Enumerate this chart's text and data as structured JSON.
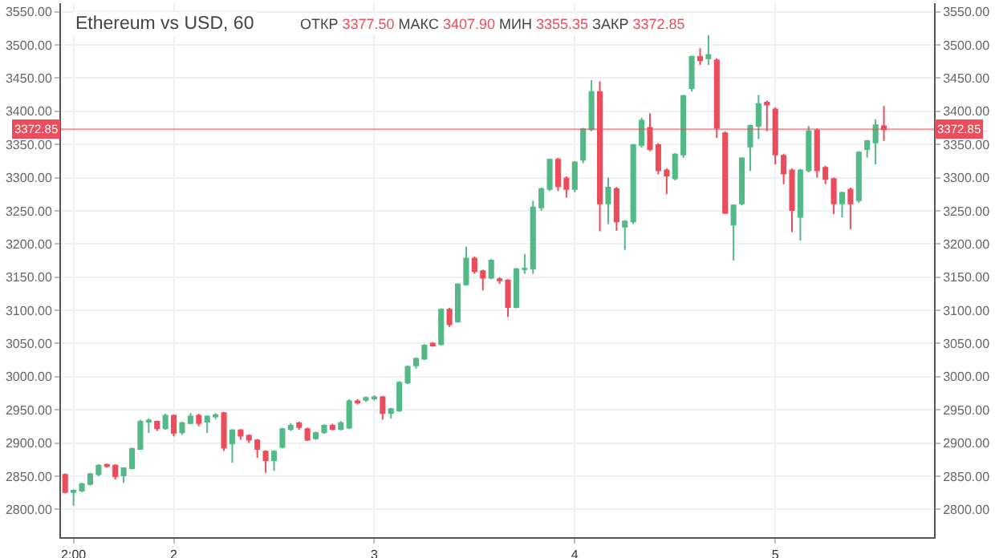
{
  "chart_data": {
    "type": "candlestick",
    "title": "Ethereum vs USD, 60",
    "subtitle": "ОТКР 3377.50 МАКС 3407.90 МИН 3355.35 ЗАКР 3372.85",
    "colors": [
      "#eb4d5c",
      "#53b987",
      "#53b987",
      "#53b987",
      "#53b987",
      "#eb4d5c",
      "#eb4d5c",
      "#53b987",
      "#53b987",
      "#53b987",
      "#53b987",
      "#eb4d5c",
      "#53b987",
      "#eb4d5c",
      "#53b987",
      "#53b987",
      "#eb4d5c",
      "#53b987",
      "#53b987",
      "#eb4d5c",
      "#53b987",
      "#eb4d5c",
      "#eb4d5c",
      "#eb4d5c",
      "#eb4d5c",
      "#53b987",
      "#53b987",
      "#53b987",
      "#eb4d5c",
      "#eb4d5c",
      "#53b987",
      "#53b987",
      "#eb4d5c",
      "#53b987",
      "#53b987",
      "#eb4d5c",
      "#53b987",
      "#53b987",
      "#eb4d5c",
      "#53b987",
      "#53b987",
      "#53b987",
      "#53b987",
      "#53b987",
      "#eb4d5c",
      "#53b987",
      "#eb4d5c",
      "#53b987",
      "#53b987",
      "#eb4d5c",
      "#eb4d5c",
      "#53b987",
      "#eb4d5c",
      "#eb4d5c",
      "#53b987",
      "#53b987",
      "#53b987",
      "#53b987",
      "#53b987",
      "#eb4d5c",
      "#eb4d5c",
      "#53b987",
      "#53b987",
      "#53b987",
      "#eb4d5c",
      "#53b987",
      "#eb4d5c",
      "#53b987",
      "#53b987",
      "#53b987",
      "#eb4d5c",
      "#eb4d5c",
      "#eb4d5c",
      "#53b987",
      "#53b987",
      "#53b987",
      "#eb4d5c",
      "#53b987",
      "#eb4d5c",
      "#eb4d5c",
      "#53b987",
      "#53b987",
      "#53b987",
      "#53b987",
      "#eb4d5c",
      "#eb4d5c",
      "#eb4d5c",
      "#eb4d5c",
      "#53b987",
      "#53b987",
      "#eb4d5c",
      "#eb4d5c",
      "#eb4d5c",
      "#53b987",
      "#eb4d5c",
      "#53b987",
      "#53b987",
      "#53b987",
      "#eb4d5c"
    ],
    "categories": [
      null,
      "2:00",
      null,
      null,
      null,
      null,
      null,
      null,
      null,
      null,
      null,
      null,
      null,
      "2",
      null,
      null,
      null,
      null,
      null,
      null,
      null,
      null,
      null,
      null,
      null,
      null,
      null,
      null,
      null,
      null,
      null,
      null,
      null,
      null,
      null,
      null,
      null,
      "3",
      null,
      null,
      null,
      null,
      null,
      null,
      null,
      null,
      null,
      null,
      null,
      null,
      null,
      null,
      null,
      null,
      null,
      null,
      null,
      null,
      null,
      null,
      null,
      "4",
      null,
      null,
      null,
      null,
      null,
      null,
      null,
      null,
      null,
      null,
      null,
      null,
      null,
      null,
      null,
      null,
      null,
      null,
      null,
      null,
      null,
      null,
      null,
      "5",
      null,
      null,
      null,
      null,
      null,
      null,
      null,
      null,
      null,
      null,
      null,
      null,
      null
    ],
    "ohlc": [
      [
        2852,
        2854,
        2824,
        2826
      ],
      [
        2826,
        2830,
        2805,
        2828
      ],
      [
        2828,
        2840,
        2826,
        2838
      ],
      [
        2838,
        2855,
        2836,
        2853
      ],
      [
        2853,
        2868,
        2850,
        2866
      ],
      [
        2867,
        2869,
        2863,
        2865
      ],
      [
        2866,
        2868,
        2845,
        2850
      ],
      [
        2851,
        2863,
        2840,
        2862
      ],
      [
        2862,
        2893,
        2860,
        2891
      ],
      [
        2891,
        2935,
        2890,
        2932
      ],
      [
        2932,
        2937,
        2915,
        2934
      ],
      [
        2932,
        2934,
        2918,
        2922
      ],
      [
        2922,
        2944,
        2920,
        2941
      ],
      [
        2941,
        2943,
        2910,
        2915
      ],
      [
        2916,
        2932,
        2912,
        2930
      ],
      [
        2930,
        2945,
        2928,
        2940
      ],
      [
        2941,
        2944,
        2925,
        2930
      ],
      [
        2932,
        2942,
        2915,
        2940
      ],
      [
        2940,
        2945,
        2936,
        2942
      ],
      [
        2945,
        2947,
        2888,
        2893
      ],
      [
        2899,
        2921,
        2870,
        2919
      ],
      [
        2919,
        2921,
        2905,
        2911
      ],
      [
        2911,
        2913,
        2900,
        2905
      ],
      [
        2904,
        2906,
        2878,
        2891
      ],
      [
        2887,
        2889,
        2855,
        2874
      ],
      [
        2874,
        2889,
        2858,
        2887
      ],
      [
        2894,
        2923,
        2892,
        2921
      ],
      [
        2921,
        2930,
        2918,
        2926
      ],
      [
        2930,
        2932,
        2920,
        2924
      ],
      [
        2921,
        2923,
        2903,
        2905
      ],
      [
        2907,
        2917,
        2905,
        2915
      ],
      [
        2916,
        2928,
        2914,
        2926
      ],
      [
        2926,
        2929,
        2919,
        2921
      ],
      [
        2921,
        2933,
        2919,
        2930
      ],
      [
        2923,
        2966,
        2921,
        2963
      ],
      [
        2963,
        2966,
        2958,
        2961
      ],
      [
        2965,
        2970,
        2962,
        2968
      ],
      [
        2967,
        2972,
        2964,
        2969
      ],
      [
        2969,
        2971,
        2935,
        2945
      ],
      [
        2945,
        2953,
        2937,
        2951
      ],
      [
        2949,
        2993,
        2947,
        2991
      ],
      [
        2991,
        3017,
        2989,
        3015
      ],
      [
        3017,
        3029,
        3012,
        3027
      ],
      [
        3027,
        3049,
        3025,
        3047
      ],
      [
        3050,
        3052,
        3045,
        3047
      ],
      [
        3049,
        3103,
        3047,
        3101
      ],
      [
        3101,
        3104,
        3075,
        3079
      ],
      [
        3083,
        3141,
        3081,
        3139
      ],
      [
        3139,
        3196,
        3137,
        3178
      ],
      [
        3178,
        3181,
        3155,
        3159
      ],
      [
        3159,
        3161,
        3130,
        3149
      ],
      [
        3149,
        3177,
        3147,
        3175
      ],
      [
        3147,
        3150,
        3140,
        3145
      ],
      [
        3145,
        3147,
        3090,
        3105
      ],
      [
        3105,
        3164,
        3103,
        3162
      ],
      [
        3162,
        3185,
        3155,
        3163
      ],
      [
        3163,
        3265,
        3155,
        3255
      ],
      [
        3255,
        3285,
        3250,
        3283
      ],
      [
        3283,
        3329,
        3280,
        3327
      ],
      [
        3327,
        3330,
        3280,
        3287
      ],
      [
        3299,
        3302,
        3270,
        3283
      ],
      [
        3283,
        3325,
        3278,
        3323
      ],
      [
        3327,
        3375,
        3322,
        3373
      ],
      [
        3373,
        3447,
        3370,
        3429
      ],
      [
        3429,
        3445,
        3219,
        3261
      ],
      [
        3261,
        3300,
        3230,
        3285
      ],
      [
        3283,
        3286,
        3220,
        3234
      ],
      [
        3226,
        3236,
        3191,
        3234
      ],
      [
        3234,
        3351,
        3230,
        3349
      ],
      [
        3349,
        3390,
        3345,
        3386
      ],
      [
        3375,
        3397,
        3340,
        3343
      ],
      [
        3349,
        3352,
        3305,
        3311
      ],
      [
        3311,
        3314,
        3275,
        3303
      ],
      [
        3299,
        3337,
        3296,
        3335
      ],
      [
        3335,
        3425,
        3330,
        3423
      ],
      [
        3435,
        3484,
        3430,
        3482
      ],
      [
        3482,
        3495,
        3470,
        3477
      ],
      [
        3480,
        3515,
        3470,
        3485
      ],
      [
        3477,
        3480,
        3360,
        3375
      ],
      [
        3367,
        3370,
        3245,
        3247
      ],
      [
        3229,
        3260,
        3175,
        3258
      ],
      [
        3261,
        3331,
        3258,
        3329
      ],
      [
        3347,
        3380,
        3310,
        3378
      ],
      [
        3378,
        3425,
        3358,
        3411
      ],
      [
        3413,
        3416,
        3370,
        3410
      ],
      [
        3403,
        3406,
        3320,
        3335
      ],
      [
        3333,
        3336,
        3290,
        3306
      ],
      [
        3311,
        3314,
        3218,
        3251
      ],
      [
        3241,
        3313,
        3205,
        3311
      ],
      [
        3311,
        3378,
        3308,
        3370
      ],
      [
        3371,
        3374,
        3300,
        3311
      ],
      [
        3315,
        3318,
        3290,
        3298
      ],
      [
        3298,
        3300,
        3245,
        3261
      ],
      [
        3261,
        3279,
        3240,
        3277
      ],
      [
        3282,
        3285,
        3222,
        3261
      ],
      [
        3266,
        3340,
        3262,
        3338
      ],
      [
        3343,
        3357,
        3330,
        3355
      ],
      [
        3353,
        3388,
        3320,
        3379
      ],
      [
        3377.5,
        3407.9,
        3355.35,
        3372.85
      ]
    ],
    "ylim": [
      2758,
      3563
    ],
    "yticks": [
      {
        "value": 2800,
        "label": "2800.00"
      },
      {
        "value": 2850,
        "label": "2850.00"
      },
      {
        "value": 2900,
        "label": "2900.00"
      },
      {
        "value": 2950,
        "label": "2950.00"
      },
      {
        "value": 3000,
        "label": "3000.00"
      },
      {
        "value": 3050,
        "label": "3050.00"
      },
      {
        "value": 3100,
        "label": "3100.00"
      },
      {
        "value": 3150,
        "label": "3150.00"
      },
      {
        "value": 3200,
        "label": "3200.00"
      },
      {
        "value": 3250,
        "label": "3250.00"
      },
      {
        "value": 3300,
        "label": "3300.00"
      },
      {
        "value": 3350,
        "label": "3350.00"
      },
      {
        "value": 3400,
        "label": "3400.00"
      },
      {
        "value": 3450,
        "label": "3450.00"
      },
      {
        "value": 3500,
        "label": "3500.00"
      },
      {
        "value": 3550,
        "label": "3550.00"
      }
    ],
    "y2lim": [
      2758,
      3563
    ],
    "y2ticks": [
      {
        "value": 2800,
        "label": "2800.00"
      },
      {
        "value": 2850,
        "label": "2850.00"
      },
      {
        "value": 2900,
        "label": "2900.00"
      },
      {
        "value": 2950,
        "label": "2950.00"
      },
      {
        "value": 3000,
        "label": "3000.00"
      },
      {
        "value": 3050,
        "label": "3050.00"
      },
      {
        "value": 3100,
        "label": "3100.00"
      },
      {
        "value": 3150,
        "label": "3150.00"
      },
      {
        "value": 3200,
        "label": "3200.00"
      },
      {
        "value": 3250,
        "label": "3250.00"
      },
      {
        "value": 3300,
        "label": "3300.00"
      },
      {
        "value": 3350,
        "label": "3350.00"
      },
      {
        "value": 3400,
        "label": "3400.00"
      },
      {
        "value": 3450,
        "label": "3450.00"
      },
      {
        "value": 3500,
        "label": "3500.00"
      },
      {
        "value": 3550,
        "label": "3550.00"
      }
    ],
    "ref_lines": [
      {
        "axis": "y",
        "value": 3372.85,
        "label": "3372.85",
        "color": "#eb4d5c"
      }
    ],
    "grid": true
  }
}
